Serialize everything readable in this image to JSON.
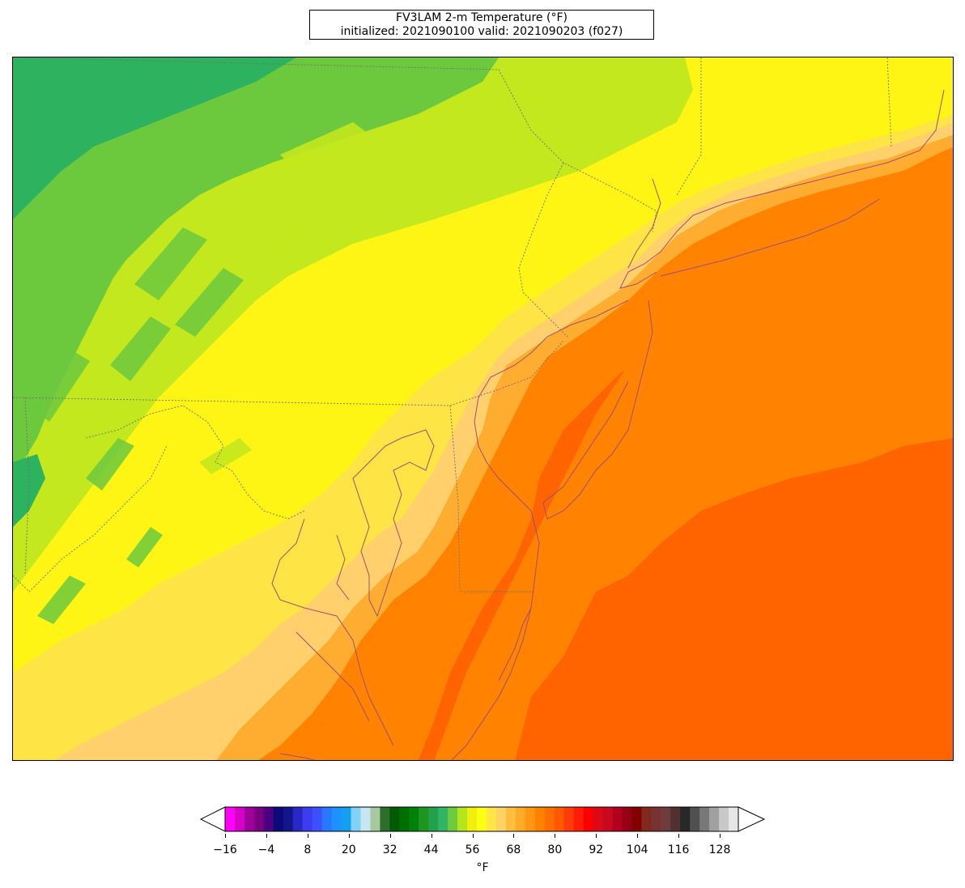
{
  "title": {
    "line1": "FV3LAM 2-m Temperature (°F)",
    "line2": "initialized: 2021090100 valid: 2021090203 (f027)"
  },
  "colorbar": {
    "unit": "°F",
    "ticks": [
      "−16",
      "−4",
      "8",
      "20",
      "32",
      "44",
      "56",
      "68",
      "80",
      "92",
      "104",
      "116",
      "128"
    ],
    "colors": [
      "#ff00ff",
      "#d600c8",
      "#a0009c",
      "#7a0082",
      "#4b0082",
      "#0a0a78",
      "#14148c",
      "#2828c8",
      "#3c3cf0",
      "#3c50ff",
      "#2878ff",
      "#1e90ff",
      "#14a0f0",
      "#82d2f5",
      "#c8e6f0",
      "#a8c8a0",
      "#2d6e2d",
      "#005a00",
      "#006e00",
      "#00820a",
      "#1e961e",
      "#23a04b",
      "#32b464",
      "#6ecc3c",
      "#b4e61e",
      "#f0f00a",
      "#ffff14",
      "#ffe646",
      "#ffd264",
      "#ffbe3c",
      "#ffaa28",
      "#ff9614",
      "#ff8200",
      "#ff6e00",
      "#ff5a00",
      "#ff3c0a",
      "#ff1e0a",
      "#ff0000",
      "#dc0a14",
      "#c80a1e",
      "#b4001e",
      "#960014",
      "#820000",
      "#82281e",
      "#783232",
      "#6e3c3c",
      "#503030",
      "#282828",
      "#505050",
      "#787878",
      "#a0a0a0",
      "#c8c8c8",
      "#e6e6e6"
    ]
  },
  "map": {
    "palette": {
      "dark_green": "#1fa860",
      "green": "#2db35f",
      "mid_green": "#6cc93e",
      "yellow_green": "#c3e81d",
      "yellow": "#fff514",
      "light_yellow": "#ffe445",
      "pale_orange": "#ffd06c",
      "light_orange": "#ffad30",
      "orange": "#ff8200",
      "deep_orange": "#ff6400",
      "coast": "#a05070",
      "border": "#707070"
    }
  }
}
